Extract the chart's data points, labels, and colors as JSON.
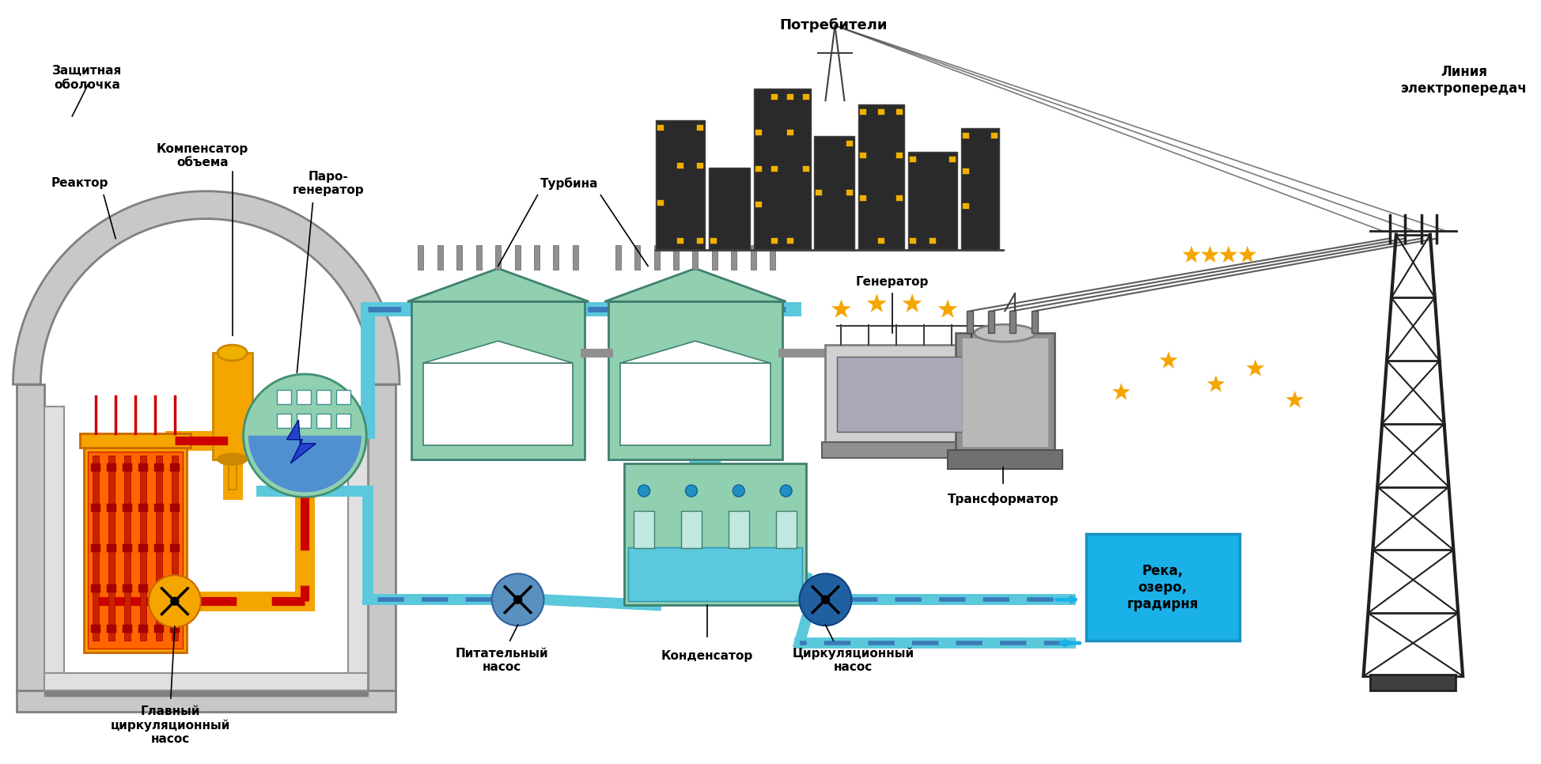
{
  "bg_color": "#ffffff",
  "figsize": [
    19.49,
    9.66
  ],
  "dpi": 100,
  "labels": {
    "protective_shell": "Защитная\nоболочка",
    "compensator": "Компенсатор\nобъема",
    "steam_gen": "Паро-\nгенератор",
    "reactor": "Реактор",
    "main_pump": "Главный\nциркуляционный\nнасос",
    "turbine": "Турбина",
    "generator": "Генератор",
    "feed_pump": "Питательный\nнасос",
    "condenser": "Конденсатор",
    "circ_pump": "Циркуляционный\nнасос",
    "transformer": "Трансформатор",
    "consumers": "Потребители",
    "transmission": "Линия\nэлектропередач",
    "river": "Река,\nозеро,\nградирня"
  },
  "shell_fill": "#c8c8c8",
  "shell_stroke": "#808080",
  "reactor_body": "#f5a500",
  "reactor_core": "#cc2200",
  "reactor_hot": "#ff6600",
  "pipe_primary": "#f5a500",
  "pipe_primary_dash": "#cc0000",
  "pipe_secondary": "#5bc8dc",
  "pipe_secondary_dash": "#3a7ab8",
  "steam_gen_body": "#90d0b0",
  "steam_gen_water": "#5090d0",
  "turbine_body": "#90d0b0",
  "generator_body": "#c8c8c8",
  "transformer_body": "#909090",
  "condenser_body": "#90d0b0",
  "condenser_water": "#5bc8dc",
  "compensator_body": "#f5a500",
  "river_bg": "#1ab0e8",
  "inner_wall": "#e0e0e0",
  "inner_stroke": "#909090"
}
